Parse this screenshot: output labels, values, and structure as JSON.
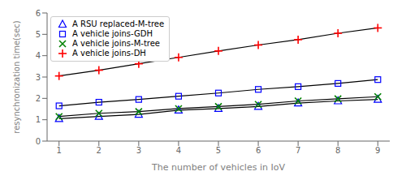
{
  "chart_data": {
    "type": "line",
    "x": [
      1,
      2,
      3,
      4,
      5,
      6,
      7,
      8,
      9
    ],
    "series": [
      {
        "name": "A RSU replaced-M-tree",
        "color": "blue",
        "marker": "triangle",
        "values": [
          1.05,
          1.15,
          1.25,
          1.45,
          1.52,
          1.62,
          1.78,
          1.88,
          1.95
        ]
      },
      {
        "name": "A vehicle joins-GDH",
        "color": "blue",
        "marker": "square",
        "values": [
          1.65,
          1.82,
          1.95,
          2.1,
          2.25,
          2.42,
          2.55,
          2.7,
          2.88
        ]
      },
      {
        "name": "A vehicle joins-M-tree",
        "color": "green",
        "marker": "x",
        "values": [
          1.15,
          1.3,
          1.38,
          1.52,
          1.62,
          1.72,
          1.88,
          1.98,
          2.08
        ]
      },
      {
        "name": "A vehicle joins-DH",
        "color": "red",
        "marker": "plus",
        "values": [
          3.05,
          3.32,
          3.62,
          3.92,
          4.22,
          4.5,
          4.75,
          5.05,
          5.3
        ]
      }
    ],
    "xlabel": "The number of  vehicles in IoV",
    "ylabel": "resynchronization time(sec)",
    "xlim": [
      0.7,
      9.3
    ],
    "xticks": [
      1,
      2,
      3,
      4,
      5,
      6,
      7,
      8,
      9
    ],
    "ylim": [
      0,
      6
    ],
    "yticks": [
      0,
      1,
      2,
      3,
      4,
      5,
      6
    ],
    "legend": "upper left",
    "grid": false
  }
}
